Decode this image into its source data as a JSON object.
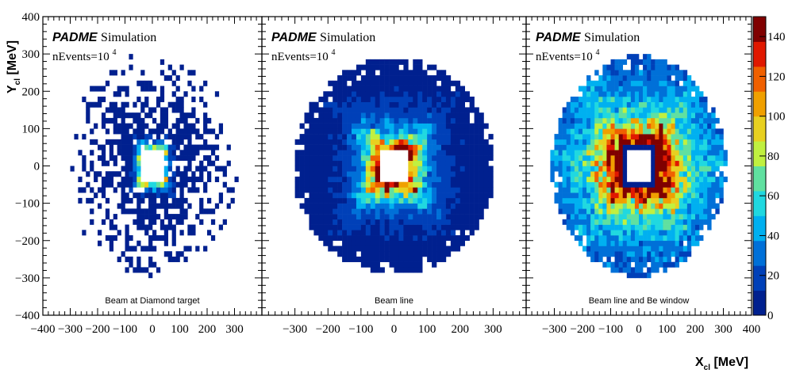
{
  "chart_data": {
    "type": "heatmap",
    "xlabel": "X",
    "xlabel_sub": "cl",
    "xlabel_unit": "[MeV]",
    "ylabel": "Y",
    "ylabel_sub": "cl",
    "ylabel_unit": "[MeV]",
    "xlim": [
      -400,
      400
    ],
    "ylim": [
      -400,
      400
    ],
    "bins": 56,
    "x_ticks": [
      "−400",
      "−300",
      "−200",
      "−100",
      "0",
      "100",
      "200",
      "300",
      "400"
    ],
    "y_ticks": [
      "−400",
      "−300",
      "−200",
      "−100",
      "0",
      "100",
      "200",
      "300",
      "400"
    ],
    "zlim": [
      0,
      150
    ],
    "z_ticks": [
      "0",
      "20",
      "40",
      "60",
      "80",
      "100",
      "120",
      "140"
    ],
    "colormap": [
      "#00208f",
      "#0040b8",
      "#0070d8",
      "#00b0f0",
      "#20d8e0",
      "#60e0a0",
      "#c0f040",
      "#e8d020",
      "#f0a000",
      "#f06000",
      "#e01800",
      "#800000"
    ],
    "label_experiment": "PADME",
    "label_sim": "Simulation",
    "label_events": "nEvents=10",
    "label_events_exp": "4",
    "panels": [
      {
        "caption": "Beam at Diamond target",
        "hole_half_size": 50,
        "outer_radius": 320,
        "occupancy_falloff": true,
        "base_value": 3,
        "ring_peak": 70,
        "ring_scale": 15,
        "horizontal_boost": 0
      },
      {
        "caption": "Beam line",
        "hole_half_size": 50,
        "outer_radius": 305,
        "occupancy_falloff": false,
        "base_value": 8,
        "ring_peak": 160,
        "ring_scale": 35,
        "horizontal_boost": 0
      },
      {
        "caption": "Beam line and Be window",
        "hole_half_size": 40,
        "outer_radius": 310,
        "occupancy_falloff": false,
        "base_value": 22,
        "ring_peak": 170,
        "ring_scale": 70,
        "horizontal_boost": 1
      }
    ]
  }
}
